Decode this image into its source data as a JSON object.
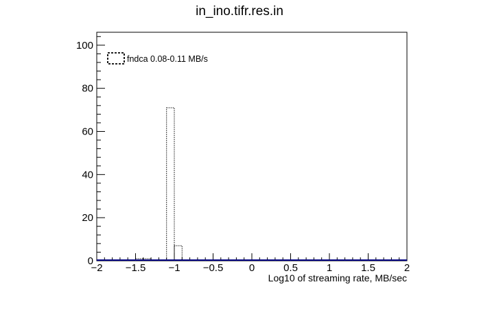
{
  "chart_data": {
    "type": "bar",
    "title": "in_ino.tifr.res.in",
    "xlabel": "Log10  of streaming rate, MB/sec",
    "ylabel": "",
    "xlim": [
      -2,
      2
    ],
    "ylim": [
      0,
      106
    ],
    "x_ticks": [
      -2,
      -1.5,
      -1,
      -0.5,
      0,
      0.5,
      1,
      1.5,
      2
    ],
    "x_tick_labels": [
      "−2",
      "−1.5",
      "−1",
      "−0.5",
      "0",
      "0.5",
      "1",
      "1.5",
      "2"
    ],
    "y_ticks": [
      0,
      20,
      40,
      60,
      80,
      100
    ],
    "y_tick_labels": [
      "0",
      "20",
      "40",
      "60",
      "80",
      "100"
    ],
    "bin_width": 0.1,
    "series": [
      {
        "name": "fndca 0.08-0.11 MB/s",
        "line_style": "dotted",
        "color": "#000000",
        "bins": [
          {
            "x_low": -1.5,
            "x_high": -1.4,
            "value": 1
          },
          {
            "x_low": -1.4,
            "x_high": -1.3,
            "value": 1
          },
          {
            "x_low": -1.1,
            "x_high": -1.0,
            "value": 71
          },
          {
            "x_low": -1.0,
            "x_high": -0.9,
            "value": 7
          }
        ]
      }
    ],
    "baseline_color": "#000080",
    "legend_placement": "top-left",
    "grid": false
  }
}
